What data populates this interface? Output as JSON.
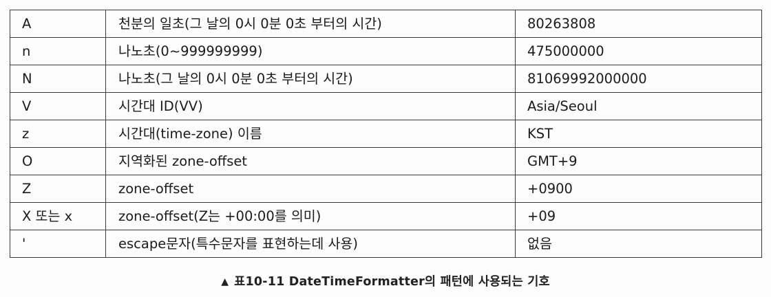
{
  "table": {
    "rows": [
      {
        "symbol": "A",
        "description": "천분의 일초(그 날의 0시 0분 0초 부터의 시간)",
        "example": "80263808"
      },
      {
        "symbol": "n",
        "description": "나노초(0~999999999)",
        "example": "475000000"
      },
      {
        "symbol": "N",
        "description": "나노초(그 날의 0시 0분 0초 부터의 시간)",
        "example": "81069992000000"
      },
      {
        "symbol": "V",
        "description": "시간대 ID(VV)",
        "example": "Asia/Seoul"
      },
      {
        "symbol": "z",
        "description": "시간대(time-zone) 이름",
        "example": "KST"
      },
      {
        "symbol": "O",
        "description": "지역화된 zone-offset",
        "example": "GMT+9"
      },
      {
        "symbol": "Z",
        "description": "zone-offset",
        "example": "+0900"
      },
      {
        "symbol": "X 또는 x",
        "description": "zone-offset(Z는 +00:00를 의미)",
        "example": "+09"
      },
      {
        "symbol": "'",
        "description": "escape문자(특수문자를 표현하는데 사용)",
        "example": "없음"
      }
    ]
  },
  "caption": {
    "marker": "▲",
    "text": "표10-11 DateTimeFormatter의 패턴에 사용되는 기호"
  }
}
